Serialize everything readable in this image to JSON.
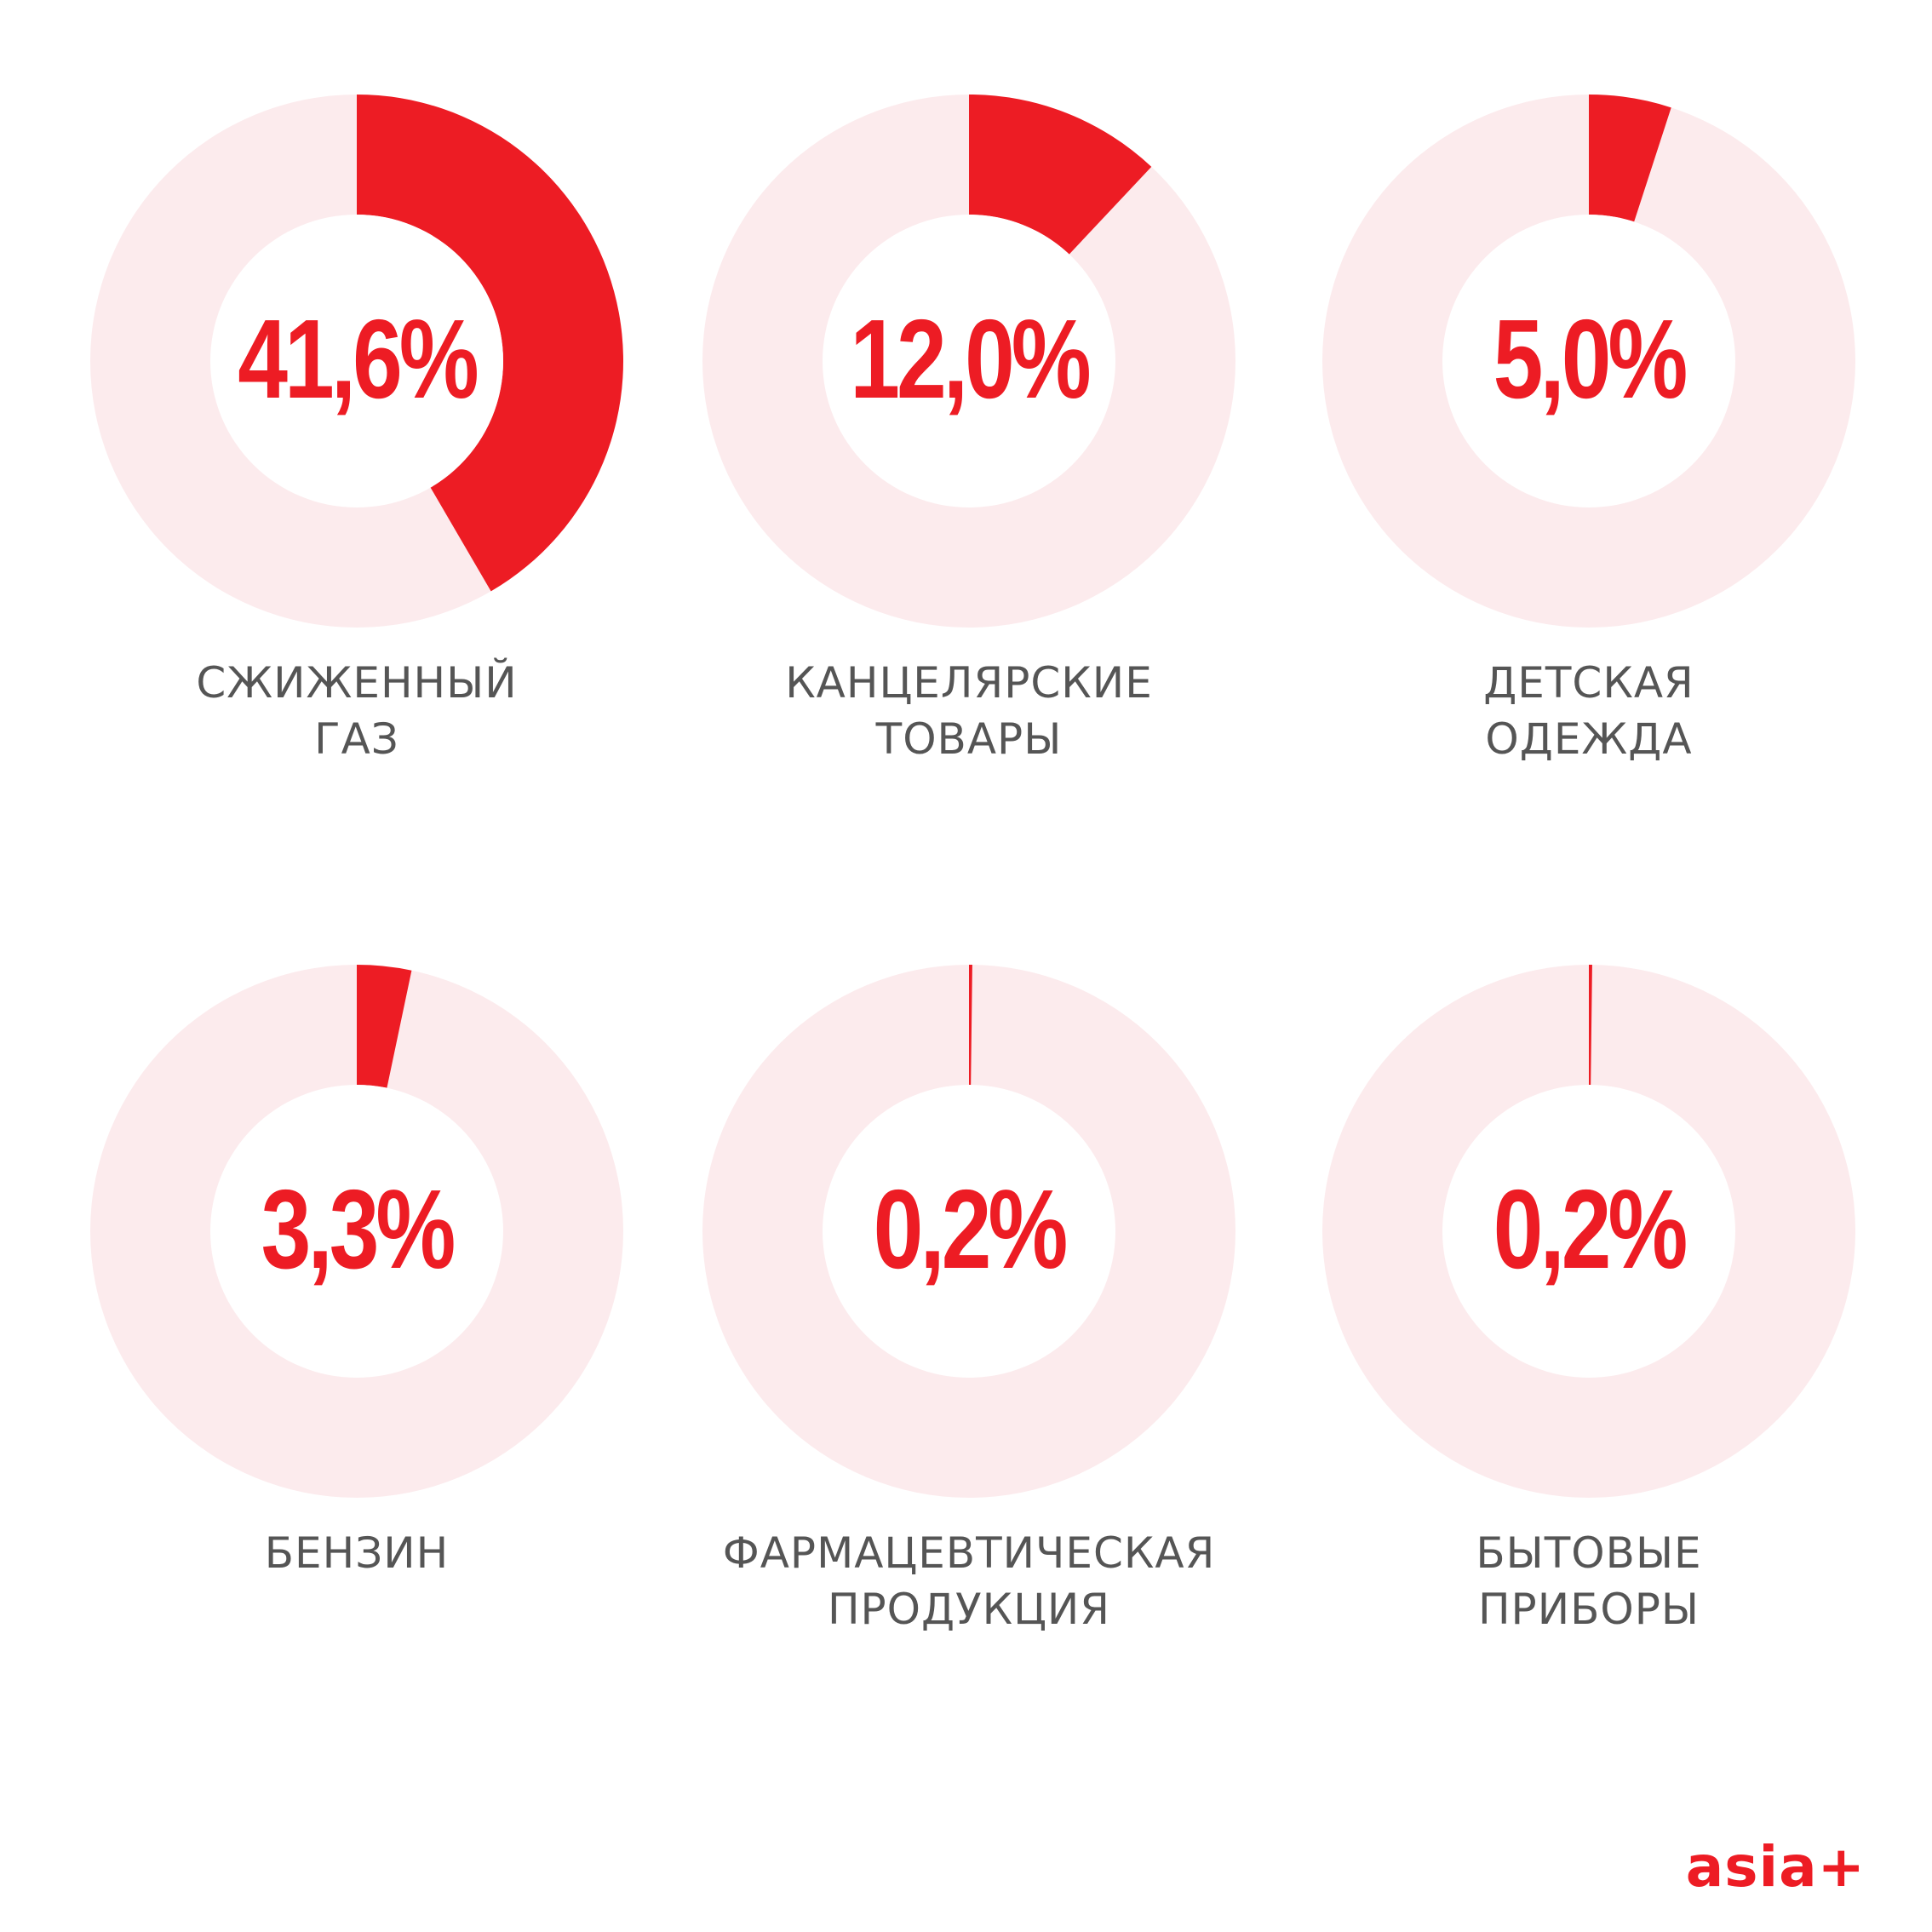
{
  "colors": {
    "accent": "#ed1c24",
    "track": "#fcebed",
    "hole": "#ffffff",
    "label": "#555555"
  },
  "brand": {
    "logo_text": "asia+"
  },
  "chart_data": {
    "type": "pie",
    "series": [
      {
        "label_lines": [
          "СЖИЖЕННЫЙ",
          "ГАЗ"
        ],
        "value": 41.6,
        "display": "41,6%"
      },
      {
        "label_lines": [
          "КАНЦЕЛЯРСКИЕ",
          "ТОВАРЫ"
        ],
        "value": 12.0,
        "display": "12,0%"
      },
      {
        "label_lines": [
          "ДЕТСКАЯ",
          "ОДЕЖДА"
        ],
        "value": 5.0,
        "display": "5,0%"
      },
      {
        "label_lines": [
          "БЕНЗИН"
        ],
        "value": 3.3,
        "display": "3,3%"
      },
      {
        "label_lines": [
          "ФАРМАЦЕВТИЧЕСКАЯ",
          "ПРОДУКЦИЯ"
        ],
        "value": 0.2,
        "display": "0,2%"
      },
      {
        "label_lines": [
          "БЫТОВЫЕ",
          "ПРИБОРЫ"
        ],
        "value": 0.2,
        "display": "0,2%"
      }
    ]
  }
}
